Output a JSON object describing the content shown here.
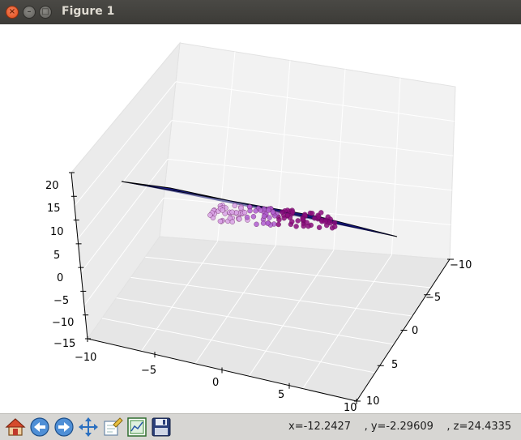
{
  "window": {
    "title": "Figure 1"
  },
  "toolbar": {
    "buttons": [
      {
        "name": "home-button",
        "icon": "home-icon"
      },
      {
        "name": "back-button",
        "icon": "arrow-left-icon"
      },
      {
        "name": "forward-button",
        "icon": "arrow-right-icon"
      },
      {
        "name": "pan-button",
        "icon": "move-arrows-icon"
      },
      {
        "name": "zoom-button",
        "icon": "zoom-rect-icon"
      },
      {
        "name": "subplots-button",
        "icon": "subplots-config-icon"
      },
      {
        "name": "save-button",
        "icon": "floppy-disk-icon"
      }
    ],
    "coords": {
      "x": "x=-12.2427",
      "y": ", y=-2.29609",
      "z": ", z=24.4335"
    }
  },
  "chart_data": {
    "type": "scatter",
    "title": "",
    "x_ticks": [
      "−10",
      "−5",
      "0",
      "5",
      "10"
    ],
    "y_ticks": [
      "−10",
      "−5",
      "0",
      "5",
      "10"
    ],
    "z_ticks": [
      "20",
      "15",
      "10",
      "5",
      "0",
      "−5",
      "−10",
      "−15"
    ],
    "xlim": [
      -10,
      10
    ],
    "ylim": [
      -10,
      10
    ],
    "zlim": [
      -15,
      20
    ],
    "grid": true,
    "plane_color": "#1a1d8a",
    "plane_edge_color": "#000000",
    "point_colors": [
      "#8b0b7d",
      "#b05fd0",
      "#d9a3e6"
    ],
    "point_count_estimate": 120
  }
}
